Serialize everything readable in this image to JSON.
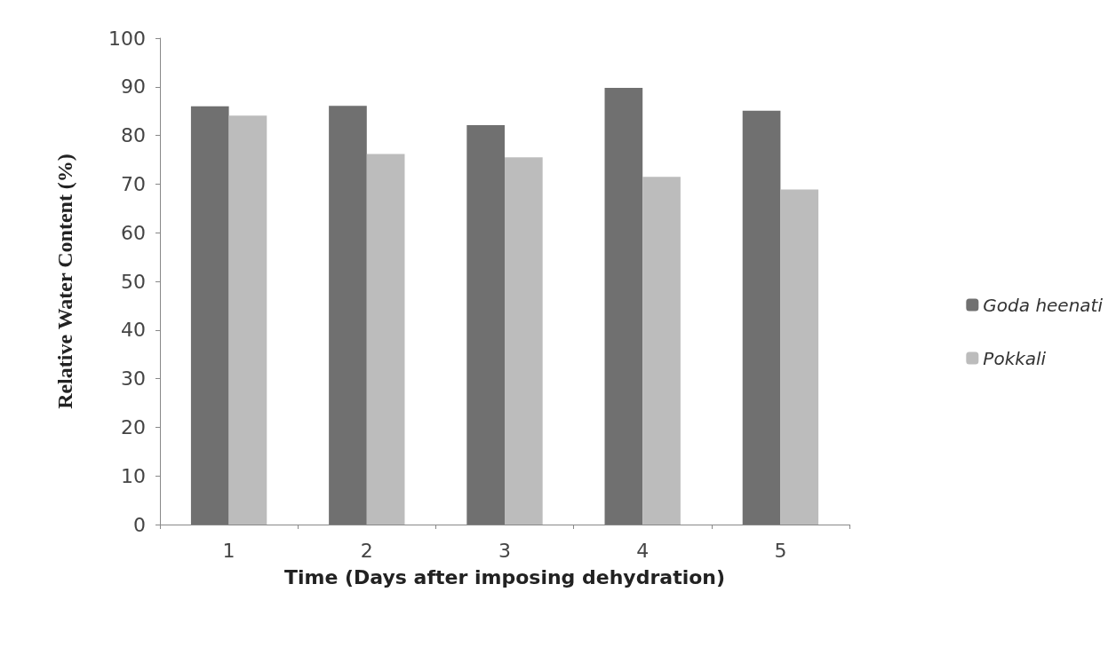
{
  "chart_data": {
    "type": "bar",
    "xlabel": "Time (Days after imposing dehydration)",
    "ylabel": "Relative Water Content (%)",
    "categories": [
      "1",
      "2",
      "3",
      "4",
      "5"
    ],
    "series": [
      {
        "name": "Goda heenati",
        "color": "#707070",
        "values": [
          86.0,
          86.1,
          82.1,
          89.8,
          85.1
        ]
      },
      {
        "name": "Pokkali",
        "color": "#bcbcbc",
        "values": [
          84.1,
          76.2,
          75.5,
          71.5,
          68.9
        ]
      }
    ],
    "ylim": [
      0,
      100
    ],
    "yticks": [
      0,
      10,
      20,
      30,
      40,
      50,
      60,
      70,
      80,
      90,
      100
    ],
    "grid": false,
    "legend": "right"
  }
}
